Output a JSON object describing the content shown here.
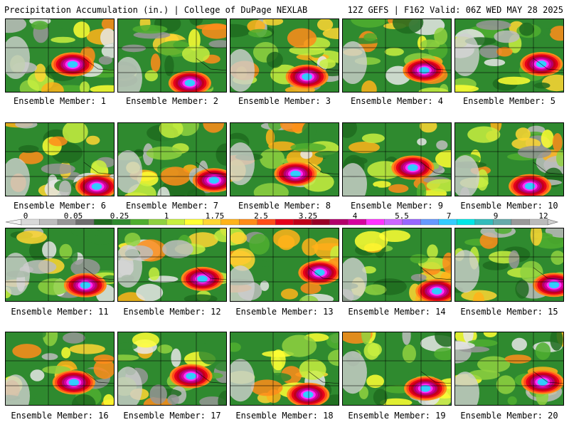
{
  "header": {
    "title_left": "Precipitation Accumulation (in.) | College of DuPage NEXLAB",
    "title_right": "12Z GEFS | F162 Valid: 06Z WED MAY 28 2025"
  },
  "panels": [
    {
      "caption": "Ensemble Member: 1"
    },
    {
      "caption": "Ensemble Member: 2"
    },
    {
      "caption": "Ensemble Member: 3"
    },
    {
      "caption": "Ensemble Member: 4"
    },
    {
      "caption": "Ensemble Member: 5"
    },
    {
      "caption": "Ensemble Member: 6"
    },
    {
      "caption": "Ensemble Member: 7"
    },
    {
      "caption": "Ensemble Member: 8"
    },
    {
      "caption": "Ensemble Member: 9"
    },
    {
      "caption": "Ensemble Member: 10"
    },
    {
      "caption": "Ensemble Member: 11"
    },
    {
      "caption": "Ensemble Member: 12"
    },
    {
      "caption": "Ensemble Member: 13"
    },
    {
      "caption": "Ensemble Member: 14"
    },
    {
      "caption": "Ensemble Member: 15"
    },
    {
      "caption": "Ensemble Member: 16"
    },
    {
      "caption": "Ensemble Member: 17"
    },
    {
      "caption": "Ensemble Member: 18"
    },
    {
      "caption": "Ensemble Member: 19"
    },
    {
      "caption": "Ensemble Member: 20"
    }
  ],
  "colorbar": {
    "labels": [
      "0",
      "0.05",
      "0.25",
      "1",
      "1.75",
      "2.5",
      "3.25",
      "4",
      "5.5",
      "7",
      "9",
      "12"
    ],
    "colors": [
      "#d9d9d9",
      "#bdbdbd",
      "#969696",
      "#6e6e6e",
      "#1f6b1f",
      "#2f8a2f",
      "#4fae2f",
      "#8fd13f",
      "#c8ef3f",
      "#ffff33",
      "#ffd633",
      "#ffb31a",
      "#ff8c1a",
      "#ff4d1a",
      "#e6001a",
      "#c0001a",
      "#990026",
      "#b3006b",
      "#d6009e",
      "#ff33ff",
      "#cc66ff",
      "#9966ff",
      "#6699ff",
      "#33ccff",
      "#00e6e6",
      "#33bbbb",
      "#66aaaa",
      "#999999",
      "#bbbbbb"
    ]
  }
}
